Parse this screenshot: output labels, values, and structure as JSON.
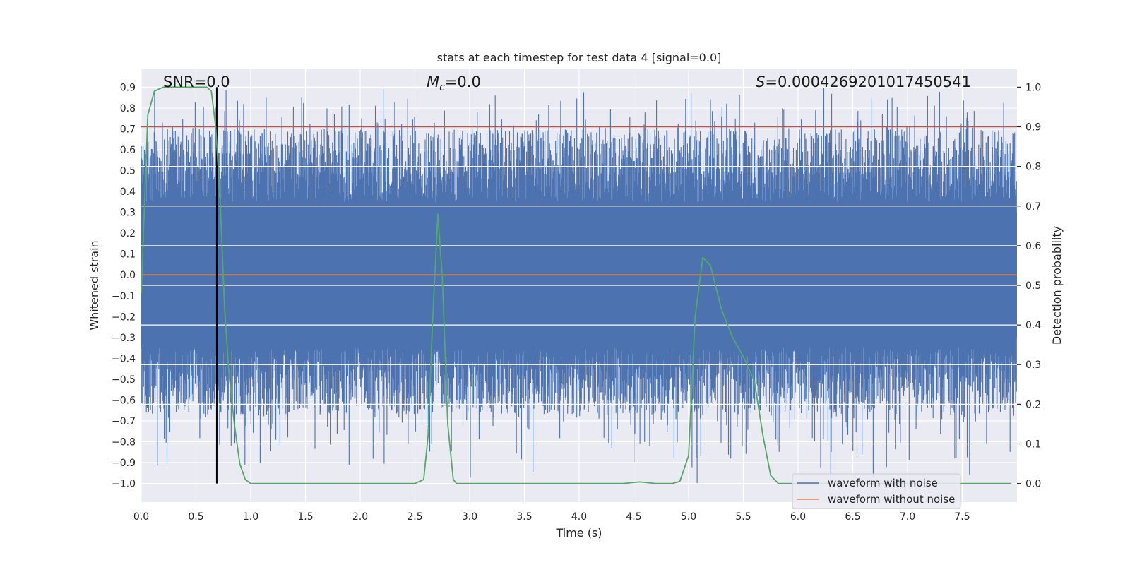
{
  "chart_data": {
    "type": "line",
    "title": "stats at each timestep for test data 4 [signal=0.0]",
    "xlabel": "Time (s)",
    "ylabel": "Whitened strain",
    "y2label": "Detection probability",
    "xlim": [
      0.0,
      8.0
    ],
    "ylim": [
      -1.09,
      0.99
    ],
    "y2lim": [
      -0.047,
      1.047
    ],
    "x_ticks": [
      0.0,
      0.5,
      1.0,
      1.5,
      2.0,
      2.5,
      3.0,
      3.5,
      4.0,
      4.5,
      5.0,
      5.5,
      6.0,
      6.5,
      7.0,
      7.5
    ],
    "x_tick_labels": [
      "0.0",
      "0.5",
      "1.0",
      "1.5",
      "2.0",
      "2.5",
      "3.0",
      "3.5",
      "4.0",
      "4.5",
      "5.0",
      "5.5",
      "6.0",
      "6.5",
      "7.0",
      "7.5"
    ],
    "y_ticks": [
      0.9,
      0.8,
      0.7,
      0.6,
      0.5,
      0.4,
      0.3,
      0.2,
      0.1,
      0.0,
      -0.1,
      -0.2,
      -0.3,
      -0.4,
      -0.5,
      -0.6,
      -0.7,
      -0.8,
      -0.9,
      -1.0
    ],
    "y_tick_labels": [
      "0.9",
      "0.8",
      "0.7",
      "0.6",
      "0.5",
      "0.4",
      "0.3",
      "0.2",
      "0.1",
      "0.0",
      "−0.1",
      "−0.2",
      "−0.3",
      "−0.4",
      "−0.5",
      "−0.6",
      "−0.7",
      "−0.8",
      "−0.9",
      "−1.0"
    ],
    "y2_ticks": [
      1.0,
      0.9,
      0.8,
      0.7,
      0.6,
      0.5,
      0.4,
      0.3,
      0.2,
      0.1,
      0.0
    ],
    "y2_tick_labels": [
      "1.0",
      "0.9",
      "0.8",
      "0.7",
      "0.6",
      "0.5",
      "0.4",
      "0.3",
      "0.2",
      "0.1",
      "0.0"
    ],
    "annotations": {
      "snr": "SNR=0.0",
      "mc_symbol": "M",
      "mc_sub": "c",
      "mc_value": "=0.0",
      "s_symbol": "S",
      "s_value": "=0.0004269201017450541"
    },
    "series": [
      {
        "name": "waveform with noise",
        "color": "#4c72b0",
        "kind": "noise",
        "core_amplitude": 0.3,
        "typical_peak_range": [
          0.4,
          0.75
        ],
        "max_peak": 0.9,
        "min_trough": -1.0
      },
      {
        "name": "waveform without noise",
        "color": "#dd8452",
        "x": [
          0.0,
          8.0
        ],
        "y": [
          0.0,
          0.0
        ]
      }
    ],
    "detection_probability": {
      "color": "#55a868",
      "axis": "right",
      "x": [
        0.0,
        0.06,
        0.12,
        0.2,
        0.3,
        0.4,
        0.5,
        0.6,
        0.64,
        0.68,
        0.72,
        0.76,
        0.8,
        0.85,
        0.9,
        0.95,
        1.0,
        1.05,
        1.5,
        2.0,
        2.5,
        2.58,
        2.62,
        2.66,
        2.71,
        2.75,
        2.8,
        2.85,
        2.88,
        2.95,
        3.5,
        4.0,
        4.4,
        4.55,
        4.7,
        4.85,
        4.92,
        5.0,
        5.06,
        5.13,
        5.2,
        5.3,
        5.4,
        5.5,
        5.6,
        5.68,
        5.75,
        5.82,
        5.9,
        6.5,
        7.0,
        7.5,
        7.95
      ],
      "y": [
        0.48,
        0.93,
        0.99,
        1.0,
        1.0,
        1.0,
        1.0,
        1.0,
        0.99,
        0.9,
        0.72,
        0.45,
        0.28,
        0.15,
        0.05,
        0.01,
        0.0,
        0.0,
        0.0,
        0.0,
        0.0,
        0.01,
        0.12,
        0.4,
        0.68,
        0.52,
        0.15,
        0.01,
        0.0,
        0.0,
        0.0,
        0.0,
        0.0,
        0.004,
        0.0,
        0.0,
        0.005,
        0.07,
        0.42,
        0.57,
        0.55,
        0.44,
        0.37,
        0.32,
        0.26,
        0.12,
        0.02,
        0.0,
        0.0,
        0.0,
        0.0,
        0.0,
        0.0
      ]
    },
    "threshold_line": {
      "color": "#c44e52",
      "y2": 0.9
    },
    "marker_line": {
      "color": "#000000",
      "x": 0.69,
      "y2_from": 0.0,
      "y2_to": 1.0
    },
    "legend": {
      "placement": "bottom-right",
      "entries": [
        {
          "label": "waveform with noise",
          "color": "#4c72b0"
        },
        {
          "label": "waveform without noise",
          "color": "#dd8452"
        }
      ]
    },
    "grid": true
  }
}
